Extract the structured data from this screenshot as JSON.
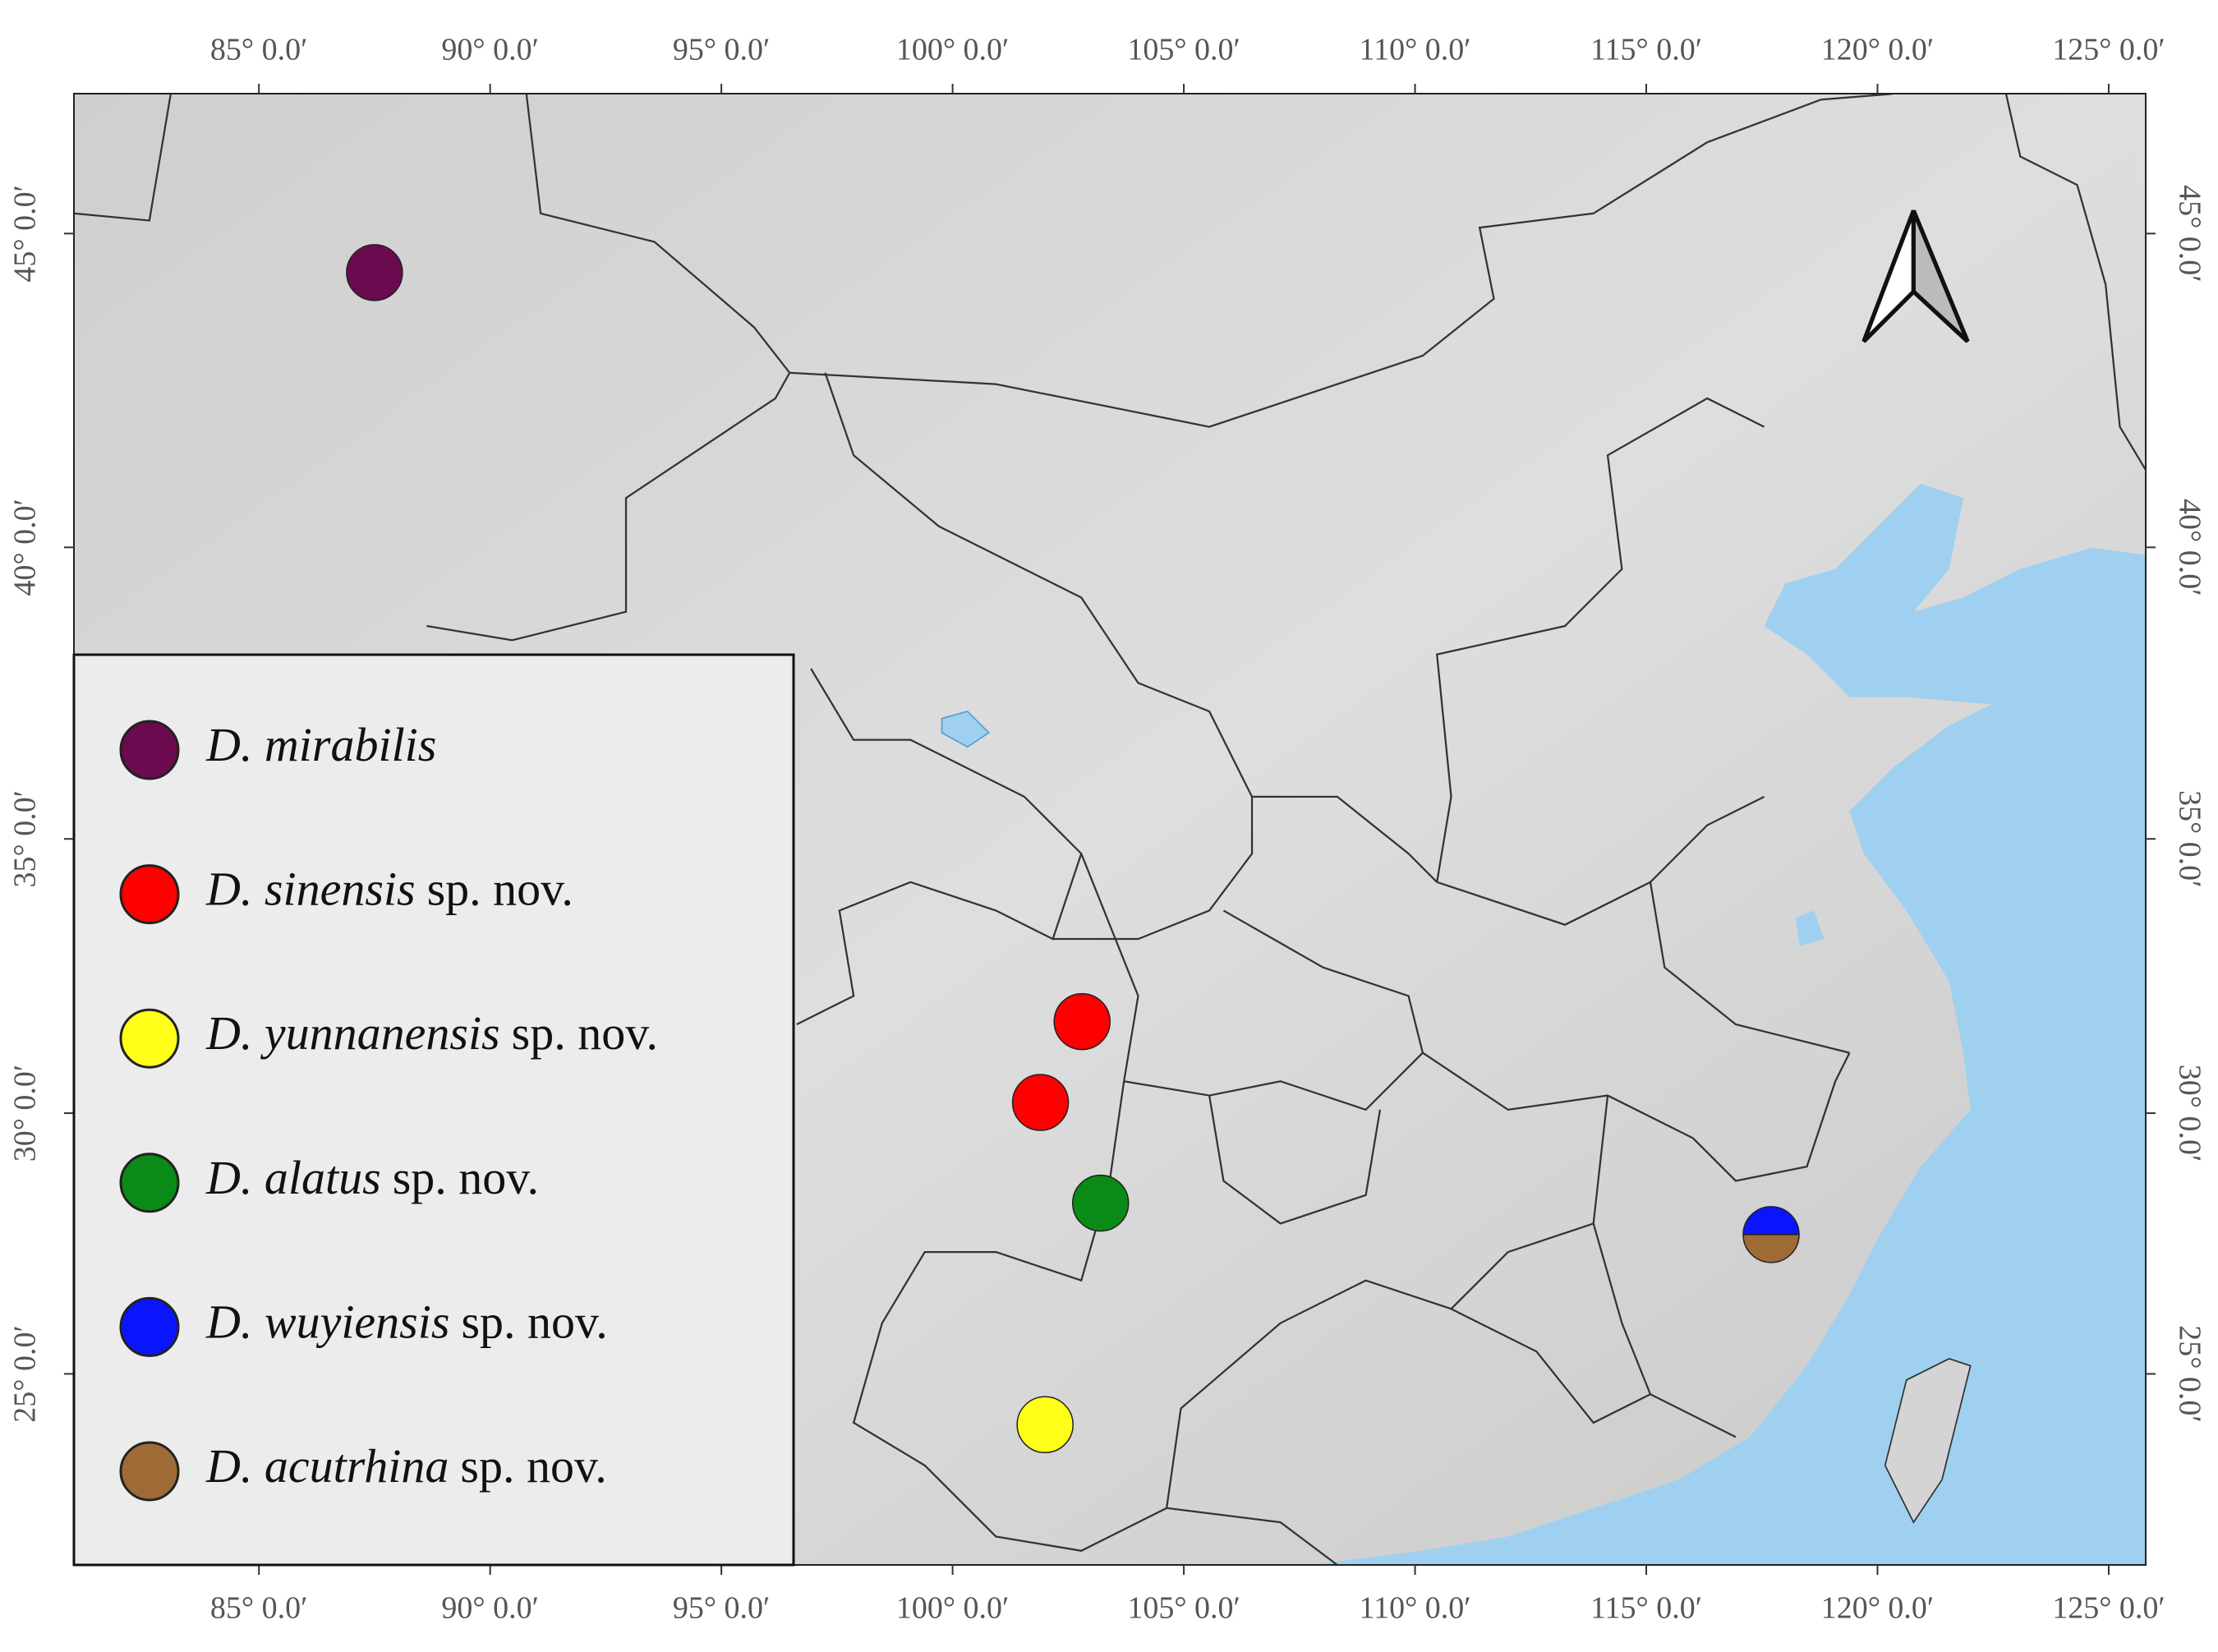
{
  "map": {
    "xlim": [
      81.0,
      125.8
    ],
    "ylim": [
      21.2,
      47.1
    ],
    "projection": "mercator",
    "xticks": [
      {
        "value": 85,
        "label": "85° 0.0′"
      },
      {
        "value": 90,
        "label": "90° 0.0′"
      },
      {
        "value": 95,
        "label": "95° 0.0′"
      },
      {
        "value": 100,
        "label": "100° 0.0′"
      },
      {
        "value": 105,
        "label": "105° 0.0′"
      },
      {
        "value": 110,
        "label": "110° 0.0′"
      },
      {
        "value": 115,
        "label": "115° 0.0′"
      },
      {
        "value": 120,
        "label": "120° 0.0′"
      },
      {
        "value": 125,
        "label": "125° 0.0′"
      }
    ],
    "yticks": [
      {
        "value": 45,
        "label": "45° 0.0′"
      },
      {
        "value": 40,
        "label": "40° 0.0′"
      },
      {
        "value": 35,
        "label": "35° 0.0′"
      },
      {
        "value": 30,
        "label": "30° 0.0′"
      },
      {
        "value": 25,
        "label": "25° 0.0′"
      }
    ],
    "series": [
      {
        "name": "D. mirabilis",
        "color": "#6b0a4f",
        "points": [
          {
            "lon": 87.5,
            "lat": 44.4
          }
        ]
      },
      {
        "name": "D. sinensis",
        "suffix": "sp. nov.",
        "color": "#ff0000",
        "points": [
          {
            "lon": 102.8,
            "lat": 31.7
          },
          {
            "lon": 101.9,
            "lat": 30.2
          }
        ]
      },
      {
        "name": "D. yunnanensis",
        "suffix": "sp. nov.",
        "color": "#ffff1a",
        "points": [
          {
            "lon": 102.0,
            "lat": 24.0
          }
        ]
      },
      {
        "name": "D. alatus",
        "suffix": "sp. nov.",
        "color": "#0a8a16",
        "points": [
          {
            "lon": 103.2,
            "lat": 28.3
          }
        ]
      },
      {
        "name": "D. wuyiensis",
        "suffix": "sp. nov.",
        "color": "#0a14ff",
        "shape": "upper-half",
        "points": [
          {
            "lon": 117.7,
            "lat": 27.7
          }
        ]
      },
      {
        "name": "D. acutrhina",
        "suffix": "sp. nov.",
        "color": "#9e6a35",
        "shape": "lower-half",
        "points": [
          {
            "lon": 117.7,
            "lat": 27.7
          }
        ]
      }
    ]
  }
}
